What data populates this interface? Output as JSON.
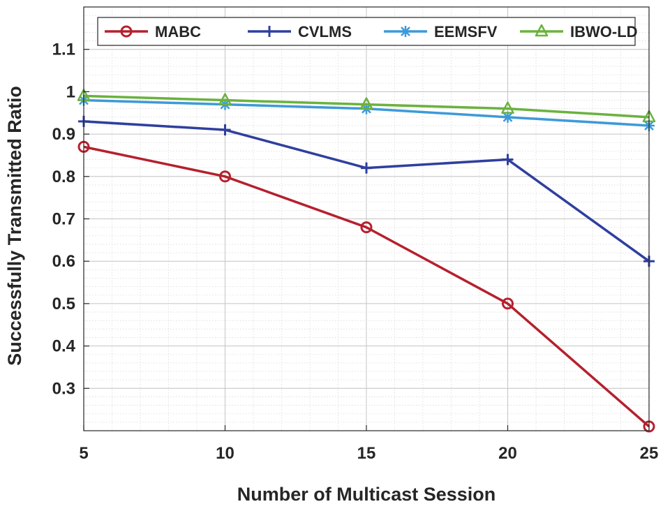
{
  "chart_data": {
    "type": "line",
    "title": "",
    "xlabel": "Number of Multicast Session",
    "ylabel": "Successfully Transmitted Ratio",
    "x": [
      5,
      10,
      15,
      20,
      25
    ],
    "xlim": [
      5,
      25
    ],
    "ylim": [
      0.2,
      1.2
    ],
    "xticks": [
      "5",
      "10",
      "15",
      "20",
      "25"
    ],
    "yticks": [
      "0.3",
      "0.4",
      "0.5",
      "0.6",
      "0.7",
      "0.8",
      "0.9",
      "1",
      "1.1"
    ],
    "ytick_values": [
      0.3,
      0.4,
      0.5,
      0.6,
      0.7,
      0.8,
      0.9,
      1.0,
      1.1
    ],
    "grid": true,
    "minor_grid": true,
    "legend_position": "top",
    "series": [
      {
        "name": "MABC",
        "values": [
          0.87,
          0.8,
          0.68,
          0.5,
          0.21
        ],
        "color": "#b5202e",
        "marker": "circle"
      },
      {
        "name": "CVLMS",
        "values": [
          0.93,
          0.91,
          0.82,
          0.84,
          0.6
        ],
        "color": "#2f3f9e",
        "marker": "plus"
      },
      {
        "name": "EEMSFV",
        "values": [
          0.98,
          0.97,
          0.96,
          0.94,
          0.92
        ],
        "color": "#3d9ad8",
        "marker": "asterisk"
      },
      {
        "name": "IBWO-LD",
        "values": [
          0.99,
          0.98,
          0.97,
          0.96,
          0.94
        ],
        "color": "#6ab23e",
        "marker": "triangle"
      }
    ]
  }
}
